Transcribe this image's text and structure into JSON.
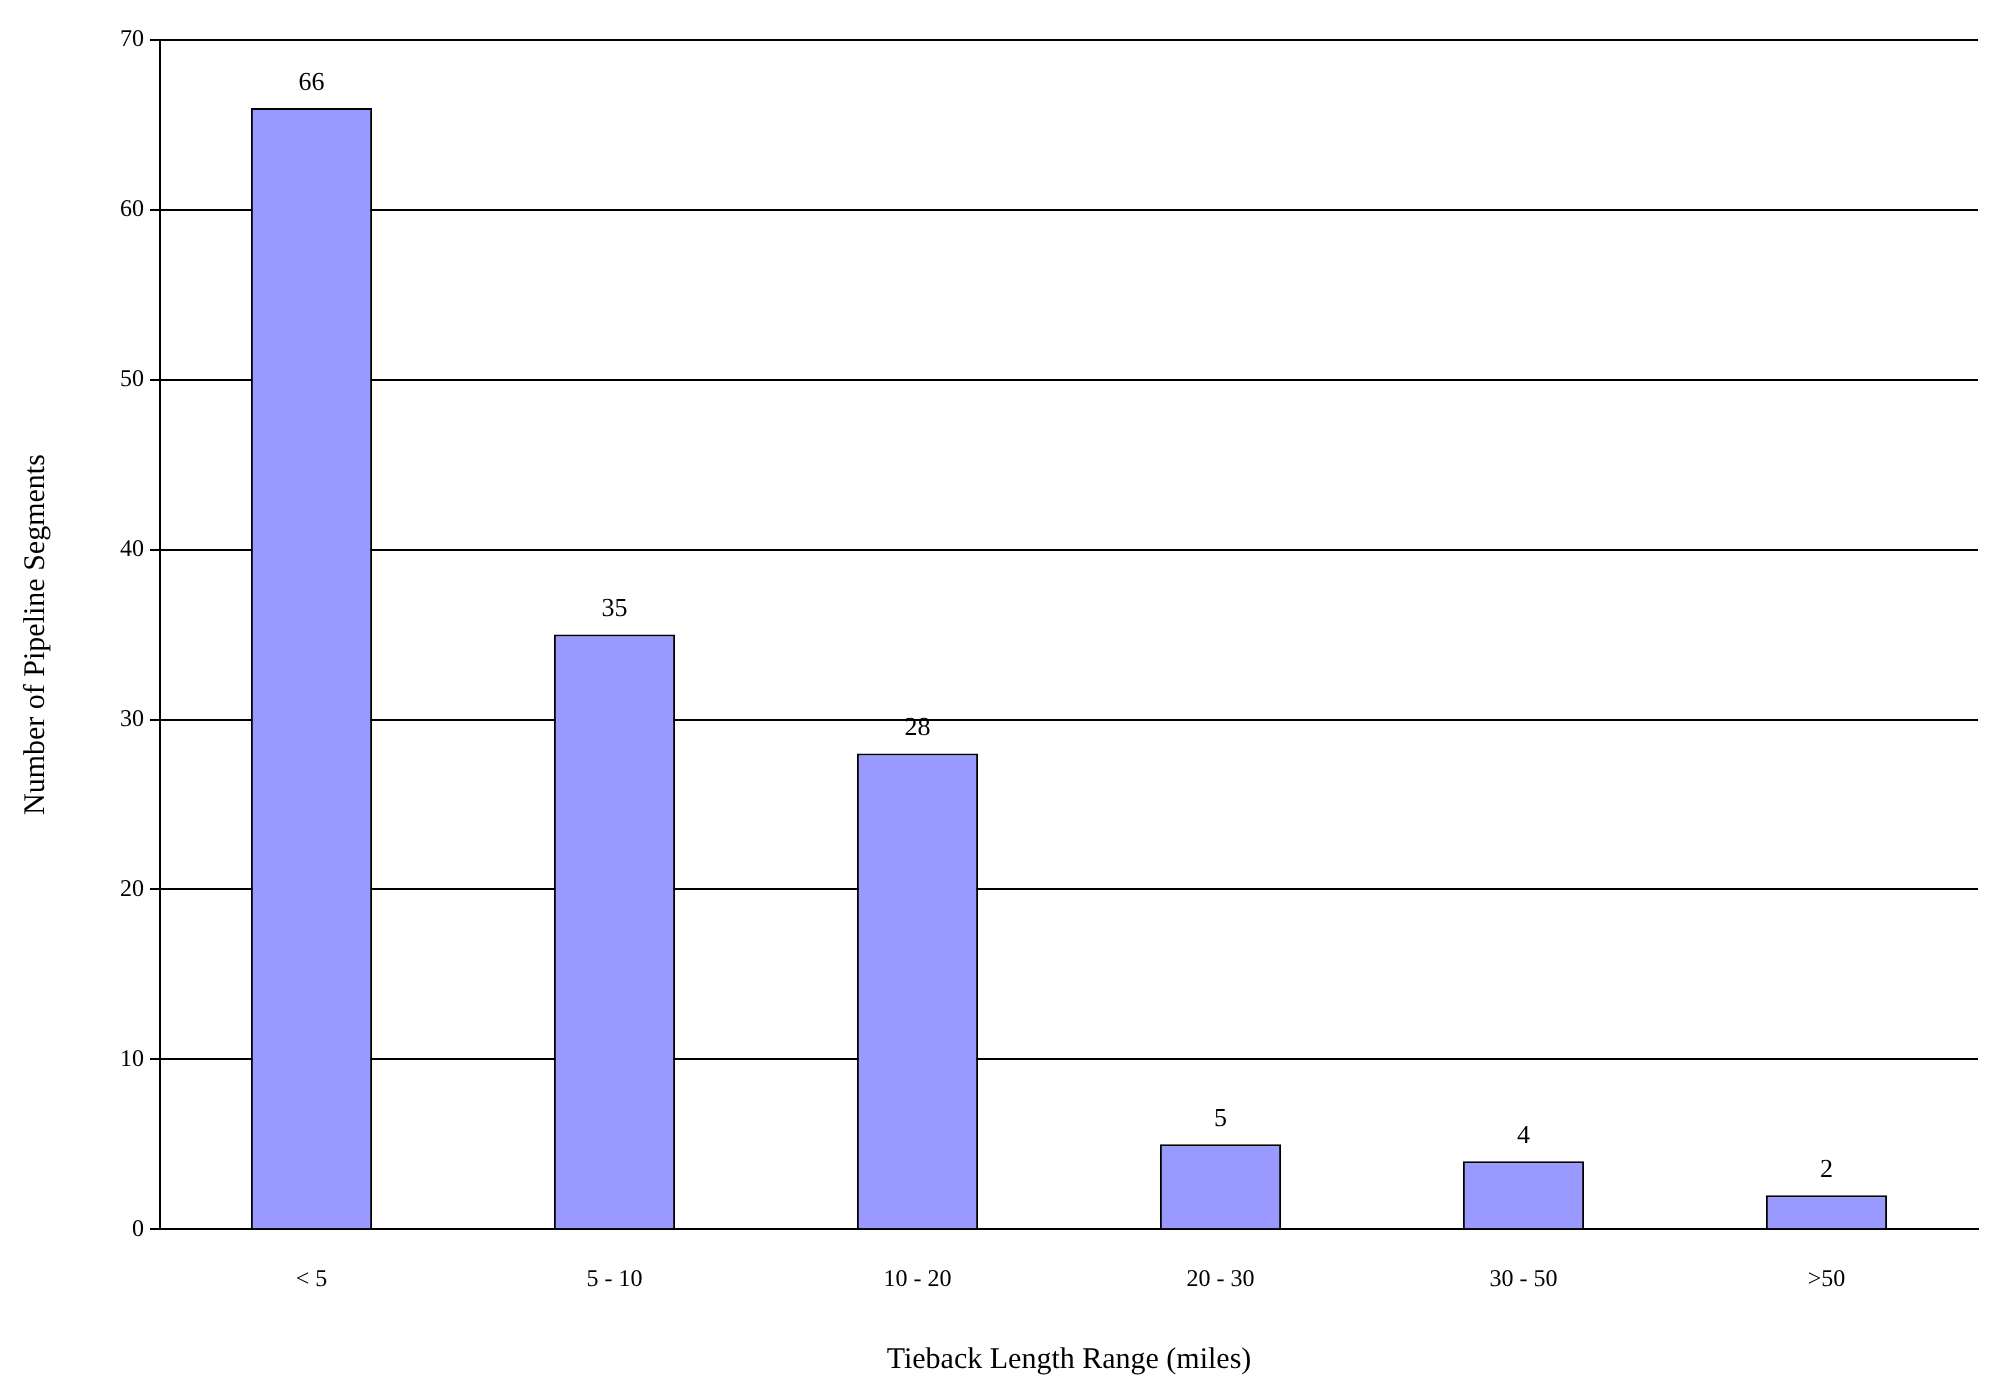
{
  "chart_data": {
    "type": "bar",
    "xlabel": "Tieback Length Range (miles)",
    "ylabel": "Number of Pipeline Segments",
    "categories": [
      "< 5",
      "5 - 10",
      "10 - 20",
      "20 - 30",
      "30 - 50",
      ">50"
    ],
    "values": [
      66,
      35,
      28,
      5,
      4,
      2
    ],
    "color": "#9999ff",
    "ylim": [
      0,
      70
    ],
    "yticks": [
      0,
      10,
      20,
      30,
      40,
      50,
      60,
      70
    ],
    "grid": "y",
    "legend": false,
    "data_labels": true
  }
}
